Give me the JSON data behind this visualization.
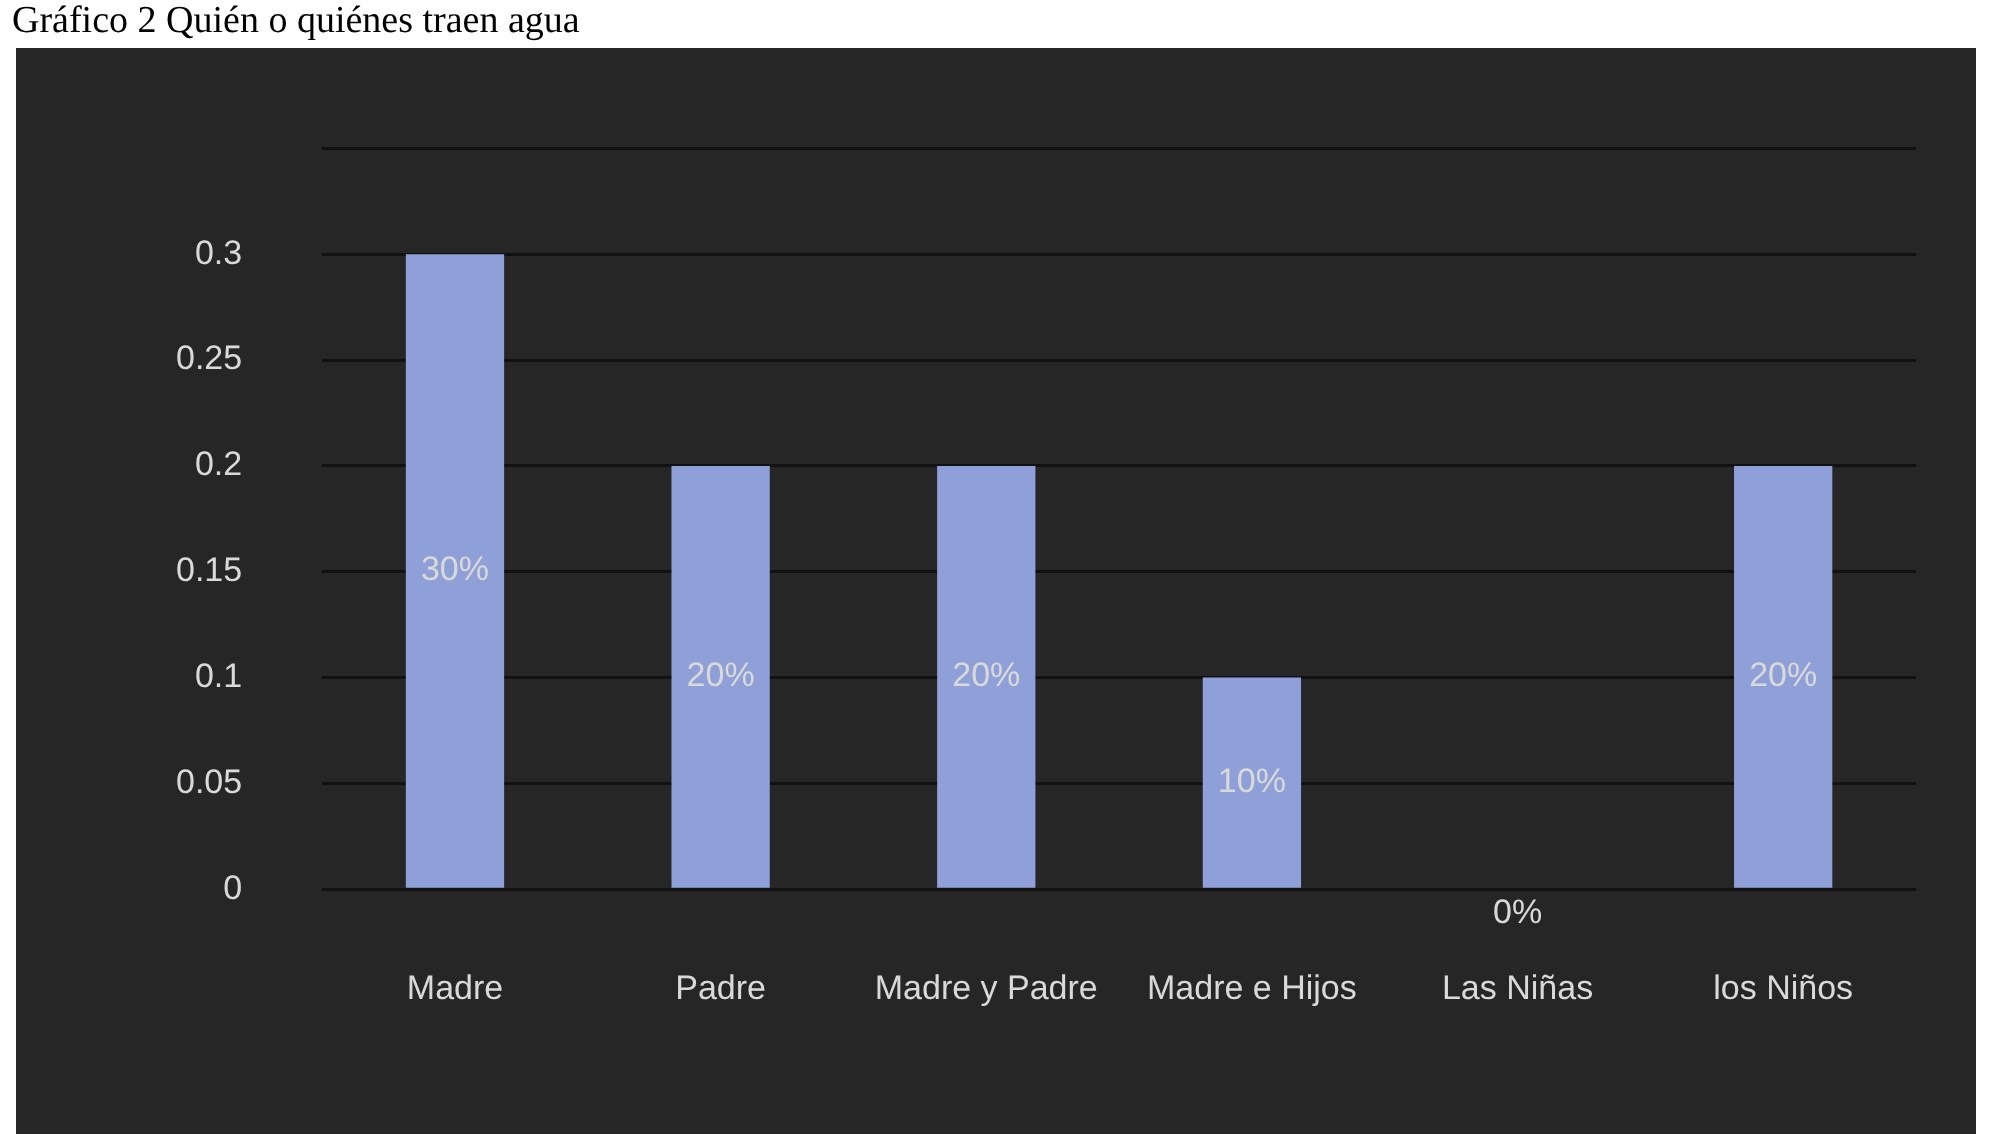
{
  "chart_data": {
    "type": "bar",
    "title": "Gráfico 2 Quién o quiénes traen agua",
    "categories": [
      "Madre",
      "Padre",
      "Madre y Padre",
      "Madre e Hijos",
      "Las Niñas",
      "los Niños"
    ],
    "values": [
      0.3,
      0.2,
      0.2,
      0.1,
      0,
      0.2
    ],
    "value_labels": [
      "30%",
      "20%",
      "20%",
      "10%",
      "0%",
      "20%"
    ],
    "color": "#8fa0d8",
    "ylim": [
      0,
      0.35
    ],
    "yticks": [
      0,
      0.05,
      0.1,
      0.15,
      0.2,
      0.25,
      0.3,
      {
        "value": 0.35,
        "label": null
      }
    ],
    "grid": "y"
  }
}
